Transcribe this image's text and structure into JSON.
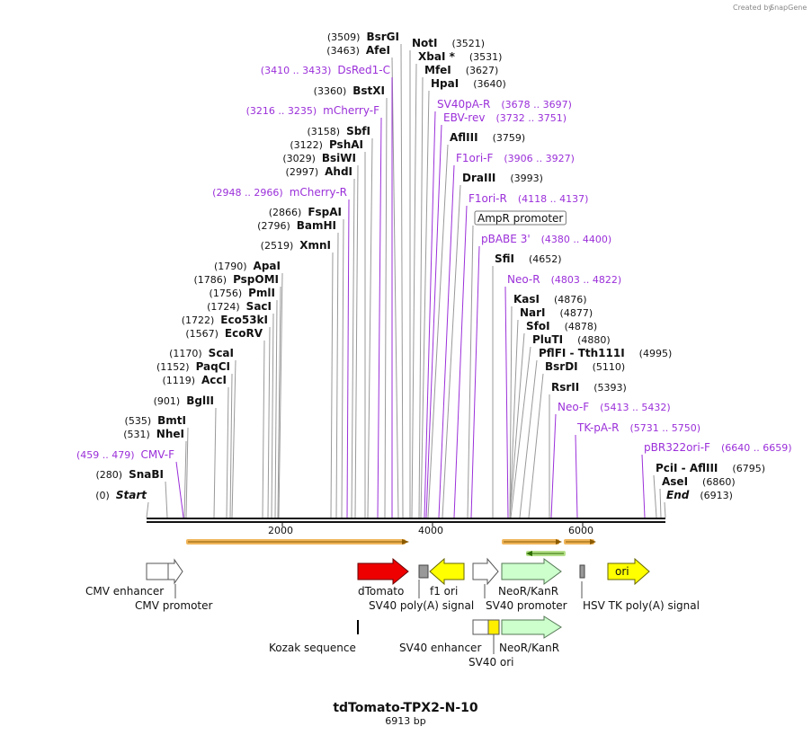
{
  "credit": {
    "created_by": "Created by",
    "brand": "SnapGene"
  },
  "title": "tdTomato-TPX2-N-10",
  "length": "6913 bp",
  "scale_labels": [
    "2000",
    "4000",
    "6000"
  ],
  "left_sites": [
    {
      "pos": "(3509)",
      "name": "BsrGI"
    },
    {
      "pos": "(3463)",
      "name": "AfeI"
    },
    {
      "pos": "(3410 .. 3433)",
      "name": "DsRed1-C",
      "primer": true
    },
    {
      "pos": "(3360)",
      "name": "BstXI"
    },
    {
      "pos": "(3216 .. 3235)",
      "name": "mCherry-F",
      "primer": true
    },
    {
      "pos": "(3158)",
      "name": "SbfI"
    },
    {
      "pos": "(3122)",
      "name": "PshAI"
    },
    {
      "pos": "(3029)",
      "name": "BsiWI"
    },
    {
      "pos": "(2997)",
      "name": "AhdI"
    },
    {
      "pos": "(2948 .. 2966)",
      "name": "mCherry-R",
      "primer": true
    },
    {
      "pos": "(2866)",
      "name": "FspAI"
    },
    {
      "pos": "(2796)",
      "name": "BamHI"
    },
    {
      "pos": "(2519)",
      "name": "XmnI"
    },
    {
      "pos": "(1790)",
      "name": "ApaI"
    },
    {
      "pos": "(1786)",
      "name": "PspOMI"
    },
    {
      "pos": "(1756)",
      "name": "PmlI"
    },
    {
      "pos": "(1724)",
      "name": "SacI"
    },
    {
      "pos": "(1722)",
      "name": "Eco53kI"
    },
    {
      "pos": "(1567)",
      "name": "EcoRV"
    },
    {
      "pos": "(1170)",
      "name": "ScaI"
    },
    {
      "pos": "(1152)",
      "name": "PaqCI"
    },
    {
      "pos": "(1119)",
      "name": "AccI"
    },
    {
      "pos": "(901)",
      "name": "BglII"
    },
    {
      "pos": "(535)",
      "name": "BmtI"
    },
    {
      "pos": "(531)",
      "name": "NheI"
    },
    {
      "pos": "(459 .. 479)",
      "name": "CMV-F",
      "primer": true
    },
    {
      "pos": "(280)",
      "name": "SnaBI"
    },
    {
      "pos": "(0)",
      "name": "Start",
      "italic": true
    }
  ],
  "right_sites": [
    {
      "name": "NotI",
      "pos": "(3521)"
    },
    {
      "name": "XbaI *",
      "pos": "(3531)"
    },
    {
      "name": "MfeI",
      "pos": "(3627)"
    },
    {
      "name": "HpaI",
      "pos": "(3640)"
    },
    {
      "name": "SV40pA-R",
      "pos": "(3678 .. 3697)",
      "primer": true
    },
    {
      "name": "EBV-rev",
      "pos": "(3732 .. 3751)",
      "primer": true
    },
    {
      "name": "AflIII",
      "pos": "(3759)"
    },
    {
      "name": "F1ori-F",
      "pos": "(3906 .. 3927)",
      "primer": true
    },
    {
      "name": "DraIII",
      "pos": "(3993)"
    },
    {
      "name": "F1ori-R",
      "pos": "(4118 .. 4137)",
      "primer": true
    },
    {
      "name": "AmpR promoter",
      "pos": "",
      "boxed": true
    },
    {
      "name": "pBABE 3'",
      "pos": "(4380 .. 4400)",
      "primer": true
    },
    {
      "name": "SfiI",
      "pos": "(4652)"
    },
    {
      "name": "Neo-R",
      "pos": "(4803 .. 4822)",
      "primer": true
    },
    {
      "name": "KasI",
      "pos": "(4876)"
    },
    {
      "name": "NarI",
      "pos": "(4877)"
    },
    {
      "name": "SfoI",
      "pos": "(4878)"
    },
    {
      "name": "PluTI",
      "pos": "(4880)"
    },
    {
      "name": "PflFI - Tth111I",
      "pos": "(4995)"
    },
    {
      "name": "BsrDI",
      "pos": "(5110)"
    },
    {
      "name": "RsrII",
      "pos": "(5393)"
    },
    {
      "name": "Neo-F",
      "pos": "(5413 .. 5432)",
      "primer": true
    },
    {
      "name": "TK-pA-R",
      "pos": "(5731 .. 5750)",
      "primer": true
    },
    {
      "name": "pBR322ori-F",
      "pos": "(6640 .. 6659)",
      "primer": true
    },
    {
      "name": "PciI - AflIII",
      "pos": "(6795)"
    },
    {
      "name": "AseI",
      "pos": "(6860)"
    },
    {
      "name": "End",
      "pos": "(6913)",
      "italic": true
    }
  ],
  "features": [
    {
      "name": "CMV enhancer",
      "color": "#ffffff"
    },
    {
      "name": "CMV promoter",
      "color": "#ffffff"
    },
    {
      "name": "dTomato",
      "color": "#ee0000"
    },
    {
      "name": "SV40 poly(A) signal",
      "color": "#999999"
    },
    {
      "name": "f1 ori",
      "color": "#ffff00"
    },
    {
      "name": "NeoR/KanR",
      "color": "#ccffcc"
    },
    {
      "name": "SV40 promoter",
      "color": "#ffffff"
    },
    {
      "name": "HSV TK poly(A) signal",
      "color": "#999999"
    },
    {
      "name": "ori",
      "color": "#ffff00"
    },
    {
      "name": "Kozak sequence",
      "color": "#000000"
    },
    {
      "name": "SV40 enhancer",
      "color": "#ffffff"
    },
    {
      "name": "NeoR/KanR",
      "color": "#ccffcc"
    },
    {
      "name": "SV40 ori",
      "color": "#ffff00"
    }
  ],
  "colors": {
    "primer": "#9b30d9",
    "line": "#999999",
    "orf": "#f0b55a"
  }
}
